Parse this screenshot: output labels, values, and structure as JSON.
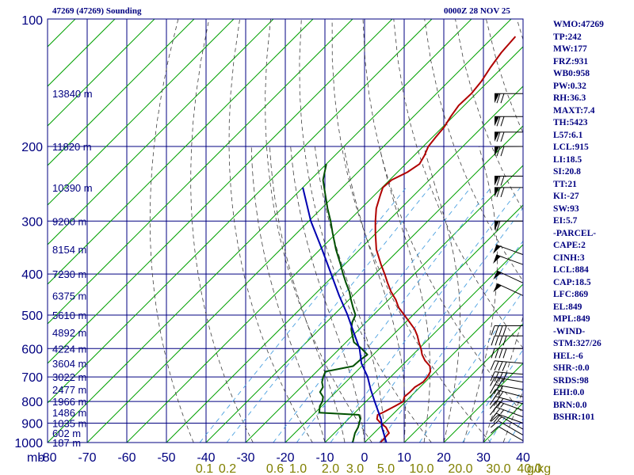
{
  "header": {
    "station": "47269 (47269) Sounding",
    "time": "0000Z 28 NOV 25"
  },
  "indices": [
    "WMO:47269",
    "TP:242",
    "MW:177",
    "FRZ:931",
    "WB0:958",
    "PW:0.32",
    "RH:36.3",
    "MAXT:7.4",
    "TH:5423",
    "L57:6.1",
    "LCL:915",
    "LI:18.5",
    "SI:20.8",
    "TT:21",
    "KI:-27",
    "SW:93",
    "EI:5.7",
    "-PARCEL-",
    "CAPE:2",
    "CINH:3",
    "LCL:884",
    "CAP:18.5",
    "LFC:869",
    "EL:849",
    "MPL:849",
    "-WIND-",
    "STM:327/26",
    "HEL:-6",
    "SHR-:0.0",
    "SRDS:98",
    "EHI:0.0",
    "BRN:0.0",
    "BSHR:101"
  ],
  "colors": {
    "grid": "#000080",
    "dry_adiabat": "#00a000",
    "moist_adiabat": "#404040",
    "mixing_ratio": "#4aa0e0",
    "temperature": "#b00000",
    "dewpoint": "#005000",
    "parcel": "#0000b0",
    "wind": "#000000",
    "mixing_label": "#808000"
  },
  "chart_data": {
    "type": "line",
    "title": "47269 (47269) Sounding",
    "subtitle": "0000Z 28 NOV 25",
    "xlabel": "",
    "ylabel": "mb",
    "y_scale": "log",
    "xlim": [
      -80,
      40
    ],
    "ylim": [
      1000,
      100
    ],
    "pressure_ticks": [
      100,
      200,
      300,
      400,
      500,
      600,
      700,
      800,
      900,
      1000
    ],
    "temp_ticks": [
      -80,
      -70,
      -60,
      -50,
      -40,
      -30,
      -20,
      -10,
      0,
      10,
      20,
      30,
      40
    ],
    "temp_tick_labels": [
      "-80",
      "-70",
      "-60",
      "-50",
      "-40",
      "-30",
      "-20",
      "-10",
      "0",
      "10",
      "20",
      "30",
      "40"
    ],
    "height_labels": [
      {
        "p": 1000,
        "label": "187 m"
      },
      {
        "p": 950,
        "label": "602 m"
      },
      {
        "p": 900,
        "label": "1035 m"
      },
      {
        "p": 850,
        "label": "1486 m"
      },
      {
        "p": 800,
        "label": "1966 m"
      },
      {
        "p": 750,
        "label": "2477 m"
      },
      {
        "p": 700,
        "label": "3022 m"
      },
      {
        "p": 650,
        "label": "3604 m"
      },
      {
        "p": 600,
        "label": "4224 m"
      },
      {
        "p": 550,
        "label": "4892 m"
      },
      {
        "p": 500,
        "label": "5610 m"
      },
      {
        "p": 450,
        "label": "6375 m"
      },
      {
        "p": 400,
        "label": "7230 m"
      },
      {
        "p": 350,
        "label": "8154 m"
      },
      {
        "p": 300,
        "label": "9200 m"
      },
      {
        "p": 250,
        "label": "10390 m"
      },
      {
        "p": 200,
        "label": "11820 m"
      },
      {
        "p": 150,
        "label": "13840 m"
      }
    ],
    "mixing_ratio_labels": [
      "0.1",
      "0.2",
      "0.6",
      "1.0",
      "2.0",
      "3.0",
      "5.0",
      "10.0",
      "20.0",
      "30.0",
      "40.0",
      "g/kg"
    ],
    "mixing_ratio_lines": [
      0.1,
      0.2,
      0.6,
      1.0,
      2.0,
      3.0,
      5.0,
      10.0,
      20.0,
      30.0,
      40.0
    ],
    "series": [
      {
        "key": "temperature",
        "points": [
          [
            1000,
            4.0
          ],
          [
            950,
            3.8
          ],
          [
            920,
            1.5
          ],
          [
            900,
            -0.8
          ],
          [
            880,
            -2.8
          ],
          [
            860,
            -3.7
          ],
          [
            850,
            -3.0
          ],
          [
            820,
            -1.5
          ],
          [
            800,
            -0.6
          ],
          [
            780,
            -1.5
          ],
          [
            760,
            -1.3
          ],
          [
            740,
            -1.3
          ],
          [
            720,
            -0.5
          ],
          [
            700,
            -0.7
          ],
          [
            680,
            -1.3
          ],
          [
            660,
            -2.8
          ],
          [
            640,
            -5.5
          ],
          [
            620,
            -7.7
          ],
          [
            600,
            -9.5
          ],
          [
            580,
            -11.6
          ],
          [
            560,
            -13.6
          ],
          [
            540,
            -16.0
          ],
          [
            520,
            -19.0
          ],
          [
            500,
            -22.2
          ],
          [
            480,
            -25.5
          ],
          [
            460,
            -28.2
          ],
          [
            440,
            -31.5
          ],
          [
            420,
            -34.5
          ],
          [
            400,
            -37.5
          ],
          [
            380,
            -40.8
          ],
          [
            350,
            -45.8
          ],
          [
            320,
            -50.2
          ],
          [
            300,
            -53.2
          ],
          [
            280,
            -56.2
          ],
          [
            260,
            -58.6
          ],
          [
            250,
            -59.8
          ],
          [
            240,
            -59.5
          ],
          [
            230,
            -57.5
          ],
          [
            220,
            -56.5
          ],
          [
            210,
            -57.4
          ],
          [
            200,
            -58.7
          ],
          [
            190,
            -59.2
          ],
          [
            180,
            -59.6
          ],
          [
            170,
            -60.6
          ],
          [
            160,
            -61.4
          ],
          [
            150,
            -61.2
          ],
          [
            140,
            -61.8
          ],
          [
            130,
            -63.0
          ],
          [
            120,
            -64.0
          ],
          [
            110,
            -64.5
          ]
        ]
      },
      {
        "key": "dewpoint",
        "points": [
          [
            1000,
            -3.0
          ],
          [
            950,
            -4.8
          ],
          [
            920,
            -5.5
          ],
          [
            880,
            -7.0
          ],
          [
            860,
            -8.4
          ],
          [
            850,
            -19.0
          ],
          [
            820,
            -20.5
          ],
          [
            800,
            -21.0
          ],
          [
            780,
            -22.0
          ],
          [
            760,
            -24.0
          ],
          [
            740,
            -24.5
          ],
          [
            720,
            -26.0
          ],
          [
            700,
            -27.0
          ],
          [
            680,
            -27.8
          ],
          [
            660,
            -22.2
          ],
          [
            640,
            -22.0
          ],
          [
            620,
            -21.5
          ],
          [
            600,
            -24.5
          ],
          [
            580,
            -28.0
          ],
          [
            560,
            -30.0
          ],
          [
            540,
            -32.0
          ],
          [
            520,
            -33.5
          ],
          [
            500,
            -34.5
          ],
          [
            480,
            -37.0
          ],
          [
            460,
            -39.5
          ],
          [
            440,
            -42.0
          ],
          [
            420,
            -45.0
          ],
          [
            400,
            -48.0
          ],
          [
            380,
            -51.0
          ],
          [
            350,
            -56.0
          ],
          [
            320,
            -61.0
          ],
          [
            300,
            -64.5
          ],
          [
            280,
            -68.5
          ],
          [
            260,
            -72.5
          ],
          [
            240,
            -76.8
          ],
          [
            220,
            -80.0
          ]
        ]
      },
      {
        "key": "parcel",
        "points": [
          [
            1000,
            5.5
          ],
          [
            920,
            0.5
          ],
          [
            884,
            -1.5
          ],
          [
            850,
            -4.0
          ],
          [
            800,
            -7.8
          ],
          [
            750,
            -11.8
          ],
          [
            700,
            -15.8
          ],
          [
            650,
            -20.8
          ],
          [
            600,
            -25.0
          ],
          [
            550,
            -30.5
          ],
          [
            500,
            -36.5
          ],
          [
            450,
            -43.5
          ],
          [
            400,
            -51.0
          ],
          [
            350,
            -59.5
          ],
          [
            300,
            -69.5
          ],
          [
            250,
            -80.0
          ]
        ]
      }
    ],
    "wind_barbs": [
      {
        "p": 990,
        "dir": 300,
        "kt": 10
      },
      {
        "p": 960,
        "dir": 300,
        "kt": 12
      },
      {
        "p": 930,
        "dir": 300,
        "kt": 15
      },
      {
        "p": 900,
        "dir": 290,
        "kt": 20
      },
      {
        "p": 870,
        "dir": 290,
        "kt": 25
      },
      {
        "p": 840,
        "dir": 290,
        "kt": 25
      },
      {
        "p": 810,
        "dir": 285,
        "kt": 30
      },
      {
        "p": 780,
        "dir": 285,
        "kt": 30
      },
      {
        "p": 750,
        "dir": 280,
        "kt": 30
      },
      {
        "p": 720,
        "dir": 280,
        "kt": 30
      },
      {
        "p": 690,
        "dir": 275,
        "kt": 40
      },
      {
        "p": 650,
        "dir": 275,
        "kt": 40
      },
      {
        "p": 600,
        "dir": 270,
        "kt": 40
      },
      {
        "p": 560,
        "dir": 270,
        "kt": 40
      },
      {
        "p": 530,
        "dir": 270,
        "kt": 40
      },
      {
        "p": 450,
        "dir": 295,
        "kt": 50
      },
      {
        "p": 420,
        "dir": 295,
        "kt": 50
      },
      {
        "p": 380,
        "dir": 290,
        "kt": 50
      },
      {
        "p": 360,
        "dir": 290,
        "kt": 50
      },
      {
        "p": 300,
        "dir": 270,
        "kt": 60
      },
      {
        "p": 250,
        "dir": 270,
        "kt": 70
      },
      {
        "p": 235,
        "dir": 270,
        "kt": 70
      },
      {
        "p": 200,
        "dir": 270,
        "kt": 70
      },
      {
        "p": 185,
        "dir": 270,
        "kt": 70
      },
      {
        "p": 170,
        "dir": 270,
        "kt": 70
      },
      {
        "p": 150,
        "dir": 270,
        "kt": 70
      }
    ]
  }
}
